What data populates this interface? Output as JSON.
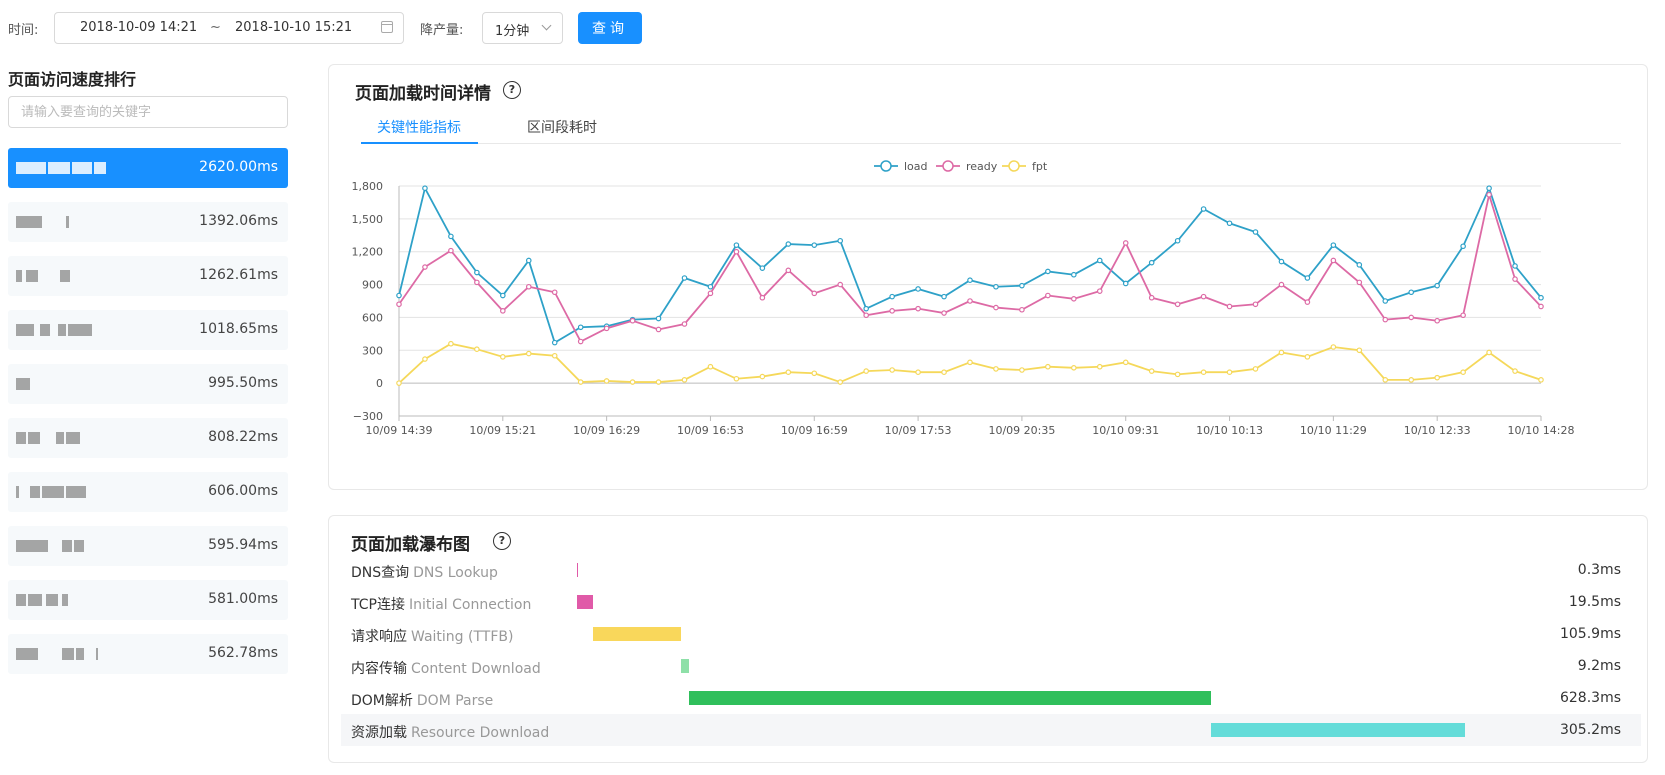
{
  "toolbar": {
    "time_label": "时间:",
    "start_time": "2018-10-09 14:21",
    "range_sep": "~",
    "end_time": "2018-10-10 15:21",
    "granularity_label": "降产量:",
    "granularity_value": "1分钟",
    "query_label": "查询"
  },
  "ranking": {
    "title": "页面访问速度排行",
    "search_placeholder": "请输入要查询的关键字",
    "items": [
      {
        "value": "2620.00ms",
        "active": true
      },
      {
        "value": "1392.06ms"
      },
      {
        "value": "1262.61ms"
      },
      {
        "value": "1018.65ms"
      },
      {
        "value": "995.50ms"
      },
      {
        "value": "808.22ms"
      },
      {
        "value": "606.00ms"
      },
      {
        "value": "595.94ms"
      },
      {
        "value": "581.00ms"
      },
      {
        "value": "562.78ms"
      }
    ]
  },
  "detail": {
    "title": "页面加载时间详情",
    "tabs": [
      "关键性能指标",
      "区间段耗时"
    ],
    "active_tab": 0
  },
  "chart_data": {
    "type": "line",
    "ylim": [
      -300,
      1800
    ],
    "yticks": [
      "−300",
      "0",
      "300",
      "600",
      "900",
      "1,200",
      "1,500",
      "1,800"
    ],
    "ytick_values": [
      -300,
      0,
      300,
      600,
      900,
      1200,
      1500,
      1800
    ],
    "xticks": [
      "10/09 14:39",
      "10/09 15:21",
      "10/09 16:29",
      "10/09 16:53",
      "10/09 16:59",
      "10/09 17:53",
      "10/09 20:35",
      "10/10 09:31",
      "10/10 10:13",
      "10/10 11:29",
      "10/10 12:33",
      "10/10 14:28"
    ],
    "xtick_index": [
      0,
      4,
      8,
      12,
      16,
      20,
      24,
      28,
      32,
      36,
      40,
      44
    ],
    "grid": true,
    "legend_position": "top-center",
    "series": [
      {
        "name": "load",
        "color": "#2ea1c8",
        "values": [
          800,
          1780,
          1340,
          1010,
          800,
          1120,
          370,
          510,
          520,
          580,
          590,
          960,
          880,
          1260,
          1050,
          1270,
          1260,
          1300,
          680,
          790,
          860,
          790,
          940,
          880,
          890,
          1020,
          990,
          1120,
          910,
          1100,
          1300,
          1590,
          1460,
          1380,
          1110,
          960,
          1260,
          1080,
          750,
          830,
          890,
          1250,
          1780,
          1070,
          780
        ]
      },
      {
        "name": "ready",
        "color": "#dd6aa5",
        "values": [
          720,
          1060,
          1210,
          920,
          660,
          880,
          830,
          380,
          500,
          570,
          490,
          540,
          820,
          1200,
          780,
          1030,
          820,
          900,
          620,
          660,
          680,
          640,
          750,
          690,
          670,
          800,
          770,
          840,
          1280,
          780,
          720,
          790,
          700,
          720,
          900,
          740,
          1120,
          920,
          580,
          600,
          570,
          620,
          1720,
          950,
          700
        ]
      },
      {
        "name": "fpt",
        "color": "#f5d85a",
        "values": [
          0,
          220,
          360,
          310,
          240,
          270,
          250,
          10,
          20,
          10,
          10,
          30,
          150,
          40,
          60,
          100,
          90,
          10,
          110,
          120,
          100,
          100,
          190,
          130,
          120,
          150,
          140,
          150,
          190,
          110,
          80,
          100,
          100,
          130,
          280,
          240,
          330,
          300,
          30,
          30,
          50,
          100,
          280,
          110,
          30
        ]
      }
    ]
  },
  "waterfall": {
    "title": "页面加载瀑布图",
    "scale_ms": 1068.4,
    "rows": [
      {
        "label": "DNS查询",
        "en": "DNS Lookup",
        "value": "0.3ms",
        "start": 0,
        "dur": 0.3,
        "color": "#e05aa8"
      },
      {
        "label": "TCP连接",
        "en": "Initial Connection",
        "value": "19.5ms",
        "start": 0.3,
        "dur": 19.5,
        "color": "#e05aa8"
      },
      {
        "label": "请求响应",
        "en": "Waiting (TTFB)",
        "value": "105.9ms",
        "start": 19.8,
        "dur": 105.9,
        "color": "#f9d75b"
      },
      {
        "label": "内容传输",
        "en": "Content Download",
        "value": "9.2ms",
        "start": 125.7,
        "dur": 9.2,
        "color": "#8ee0a8"
      },
      {
        "label": "DOM解析",
        "en": "DOM Parse",
        "value": "628.3ms",
        "start": 134.9,
        "dur": 628.3,
        "color": "#2fbf5b"
      },
      {
        "label": "资源加载",
        "en": "Resource Download",
        "value": "305.2ms",
        "start": 763.2,
        "dur": 305.2,
        "color": "#64dcd9",
        "highlight": true
      }
    ]
  }
}
